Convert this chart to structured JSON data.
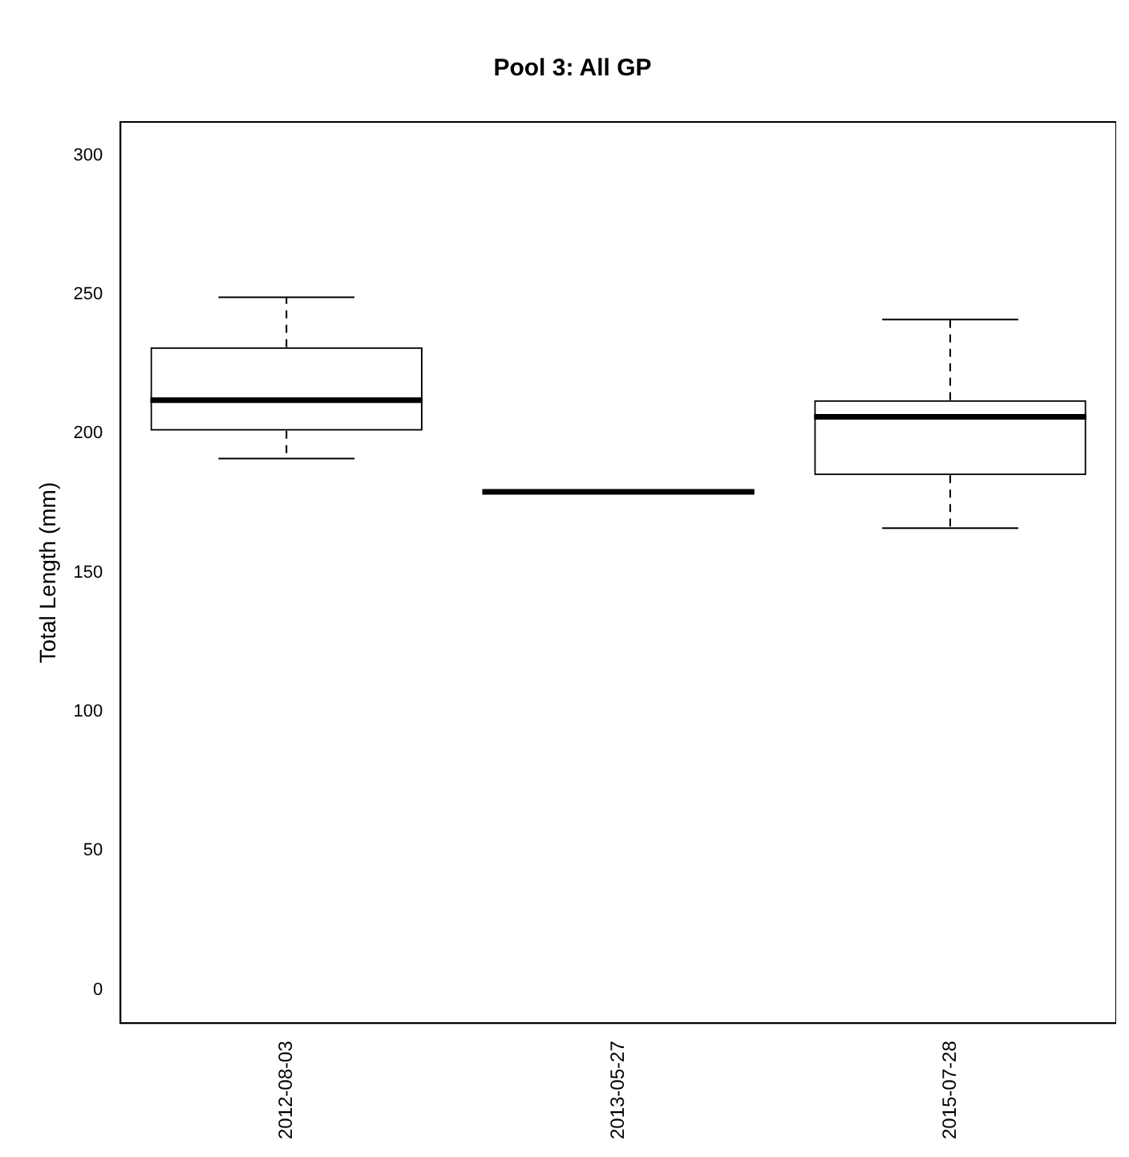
{
  "chart_data": {
    "type": "box",
    "title": "Pool 3: All GP",
    "ylabel": "Total Length (mm)",
    "categories": [
      "2012-08-03",
      "2013-05-27",
      "2015-07-28"
    ],
    "boxes": [
      {
        "low": 191,
        "q1": 201,
        "median": 212,
        "q3": 231,
        "high": 249
      },
      {
        "low": 179,
        "q1": 179,
        "median": 179,
        "q3": 179,
        "high": 179
      },
      {
        "low": 166,
        "q1": 185,
        "median": 206,
        "q3": 212,
        "high": 241
      }
    ],
    "ylim": [
      -12,
      312
    ],
    "yticks": [
      0,
      50,
      100,
      150,
      200,
      250,
      300
    ],
    "grid": false,
    "legend": false
  }
}
